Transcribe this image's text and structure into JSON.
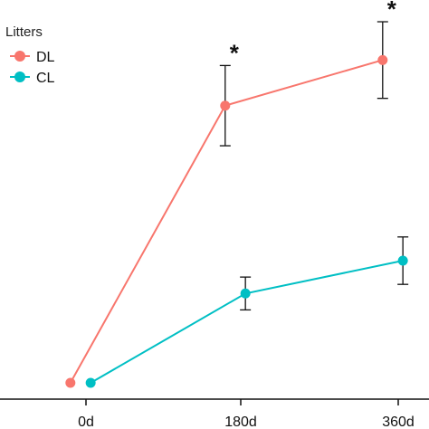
{
  "chart_data": {
    "type": "line",
    "x_categories": [
      "0d",
      "180d",
      "360d"
    ],
    "ylim": [
      0,
      10
    ],
    "series": [
      {
        "name": "DL",
        "color": "#F8766D",
        "values": [
          0,
          7.6,
          8.85
        ],
        "error": [
          0,
          1.1,
          1.05
        ],
        "x_offset": -0.1
      },
      {
        "name": "CL",
        "color": "#00BFC4",
        "values": [
          0,
          2.45,
          3.35
        ],
        "error": [
          0,
          0.45,
          0.65
        ],
        "x_offset": 0.03
      }
    ],
    "significance": [
      {
        "category": "180d",
        "label": "*"
      },
      {
        "category": "360d",
        "label": "*"
      }
    ],
    "legend": {
      "title": "Litters",
      "placement": "top-left"
    },
    "grid": false
  }
}
